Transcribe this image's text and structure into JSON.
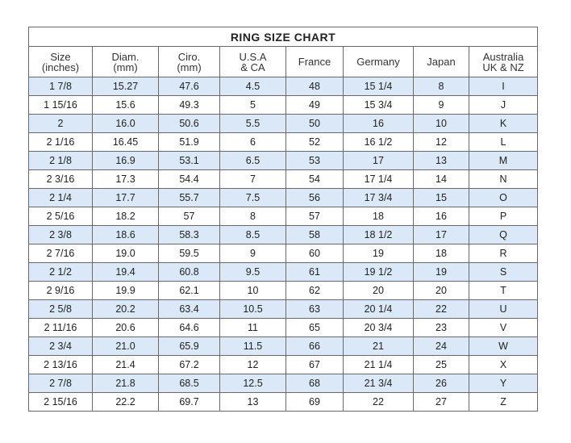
{
  "title": "RING SIZE  CHART",
  "headers": [
    [
      "Size",
      "(inches)"
    ],
    [
      "Diam.",
      "(mm)"
    ],
    [
      "Ciro.",
      "(mm)"
    ],
    [
      "U.S.A",
      "& CA"
    ],
    [
      "France",
      ""
    ],
    [
      "Germany",
      ""
    ],
    [
      "Japan",
      ""
    ],
    [
      "Australia",
      "UK & NZ"
    ]
  ],
  "rows": [
    [
      "1 7/8",
      "15.27",
      "47.6",
      "4.5",
      "48",
      "15 1/4",
      "8",
      "I"
    ],
    [
      "1 15/16",
      "15.6",
      "49.3",
      "5",
      "49",
      "15 3/4",
      "9",
      "J"
    ],
    [
      "2",
      "16.0",
      "50.6",
      "5.5",
      "50",
      "16",
      "10",
      "K"
    ],
    [
      "2 1/16",
      "16.45",
      "51.9",
      "6",
      "52",
      "16 1/2",
      "12",
      "L"
    ],
    [
      "2 1/8",
      "16.9",
      "53.1",
      "6.5",
      "53",
      "17",
      "13",
      "M"
    ],
    [
      "2 3/16",
      "17.3",
      "54.4",
      "7",
      "54",
      "17 1/4",
      "14",
      "N"
    ],
    [
      "2 1/4",
      "17.7",
      "55.7",
      "7.5",
      "56",
      "17 3/4",
      "15",
      "O"
    ],
    [
      "2 5/16",
      "18.2",
      "57",
      "8",
      "57",
      "18",
      "16",
      "P"
    ],
    [
      "2 3/8",
      "18.6",
      "58.3",
      "8.5",
      "58",
      "18 1/2",
      "17",
      "Q"
    ],
    [
      "2 7/16",
      "19.0",
      "59.5",
      "9",
      "60",
      "19",
      "18",
      "R"
    ],
    [
      "2 1/2",
      "19.4",
      "60.8",
      "9.5",
      "61",
      "19 1/2",
      "19",
      "S"
    ],
    [
      "2 9/16",
      "19.9",
      "62.1",
      "10",
      "62",
      "20",
      "20",
      "T"
    ],
    [
      "2 5/8",
      "20.2",
      "63.4",
      "10.5",
      "63",
      "20 1/4",
      "22",
      "U"
    ],
    [
      "2 11/16",
      "20.6",
      "64.6",
      "11",
      "65",
      "20 3/4",
      "23",
      "V"
    ],
    [
      "2 3/4",
      "21.0",
      "65.9",
      "11.5",
      "66",
      "21",
      "24",
      "W"
    ],
    [
      "2 13/16",
      "21.4",
      "67.2",
      "12",
      "67",
      "21 1/4",
      "25",
      "X"
    ],
    [
      "2 7/8",
      "21.8",
      "68.5",
      "12.5",
      "68",
      "21 3/4",
      "26",
      "Y"
    ],
    [
      "2 15/16",
      "22.2",
      "69.7",
      "13",
      "69",
      "22",
      "27",
      "Z"
    ]
  ],
  "colors": {
    "stripe": "#dae8f7",
    "grid": "#6a6a6a"
  }
}
